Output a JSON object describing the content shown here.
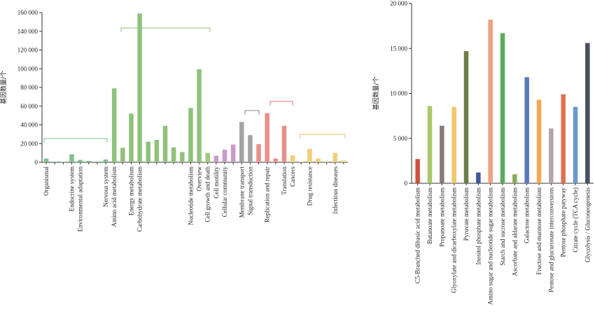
{
  "chart_data": [
    {
      "type": "bar",
      "ylabel": "基因数量/个",
      "categories": [
        "Organismal",
        null,
        null,
        "Endocrine system",
        "Environmental adaptation",
        null,
        null,
        "Nervous system",
        "Amino acid metabolism",
        null,
        "Energy metabolism",
        "Carbohydrate metabolism",
        null,
        null,
        null,
        null,
        null,
        "Nucleotide metabolism",
        "Overview",
        "Cell growth and death",
        "Cell motility",
        "Cellular community",
        null,
        "Membrane transport",
        "Signal transduction",
        null,
        "Replication and repair",
        null,
        "Translation",
        "Cancers",
        null,
        "Drug resistance",
        null,
        null,
        "Infectious diseases",
        null
      ],
      "values": [
        4000,
        800,
        500,
        8500,
        2500,
        1500,
        800,
        3000,
        79000,
        15500,
        52000,
        159000,
        22000,
        24000,
        39000,
        16000,
        11000,
        58000,
        99500,
        10000,
        7000,
        13500,
        19000,
        43000,
        29000,
        19500,
        52500,
        4000,
        39000,
        7500,
        800,
        14500,
        4000,
        1000,
        10000,
        2000
      ],
      "colors": [
        "#7fbf8c",
        "#7fbf8c",
        "#7fbf8c",
        "#7fbf8c",
        "#7fbf8c",
        "#7fbf8c",
        "#7fbf8c",
        "#7fbf8c",
        "#8fc27c",
        "#8fc27c",
        "#8fc27c",
        "#8fc27c",
        "#8fc27c",
        "#8fc27c",
        "#8fc27c",
        "#8fc27c",
        "#8fc27c",
        "#8fc27c",
        "#8fc27c",
        "#a3c978",
        "#c99bc9",
        "#c99bc9",
        "#c99bc9",
        "#a3a3a3",
        "#a3a3a3",
        "#e8908c",
        "#e8908c",
        "#e8908c",
        "#e8908c",
        "#f0cf7a",
        "#f0cf7a",
        "#f0cf7a",
        "#f0cf7a",
        "#f0cf7a",
        "#f0cf7a",
        "#f0cf7a"
      ],
      "ylim": [
        0,
        160000
      ],
      "yticks": [
        0,
        {
          "value": 20000,
          "label": "20 000"
        },
        {
          "value": 40000,
          "label": "40 000"
        },
        {
          "value": 60000,
          "label": "60 000"
        },
        {
          "value": 80000,
          "label": "80 000"
        },
        {
          "value": 100000,
          "label": "100 000"
        },
        {
          "value": 120000,
          "label": "120 000"
        },
        {
          "value": 140000,
          "label": "140 000"
        },
        {
          "value": 160000,
          "label": "160 000"
        }
      ]
    },
    {
      "type": "bar",
      "ylabel": "基因数量/个",
      "categories": [
        "C5-Branched dibasic acid metabolism",
        "Butanoate metabolism",
        "Propanoate metabolism",
        "Glyoxylate and dicarboxylate metabolism",
        "Pyruvate metabolism",
        "Inositol phosphate metabolism",
        "Amino sugar and nucleotide sugar metabolism",
        "Starch and sucrose metabolism",
        "Ascorbate and aldarate metabolism",
        "Galactose metabolism",
        "Fructose and mannose metabolism",
        "Pentose and glucuronate interconversions",
        "Pentose phosphate patyway",
        "Citrate cycle (TCA cycle)",
        "Glycolysis / Gluconeogenesis"
      ],
      "values": [
        2700,
        8600,
        6400,
        8500,
        14700,
        1200,
        18200,
        16700,
        1000,
        11800,
        9300,
        6100,
        9900,
        8500,
        15600
      ],
      "colors": [
        "#c9553e",
        "#a9c86a",
        "#8a7a7a",
        "#f0c86a",
        "#6b7e46",
        "#3d5a99",
        "#f0a080",
        "#5aad5a",
        "#8aab5a",
        "#5a7ab5",
        "#f0aa50",
        "#b0a6a6",
        "#e07050",
        "#6a9ad0",
        "#4a5060"
      ],
      "ylim": [
        0,
        20000
      ],
      "yticks": [
        0,
        {
          "value": 5000,
          "label": "5 000"
        },
        {
          "value": 10000,
          "label": "10 000"
        },
        {
          "value": 15000,
          "label": "15 000"
        },
        {
          "value": 20000,
          "label": "20 000"
        }
      ]
    }
  ]
}
